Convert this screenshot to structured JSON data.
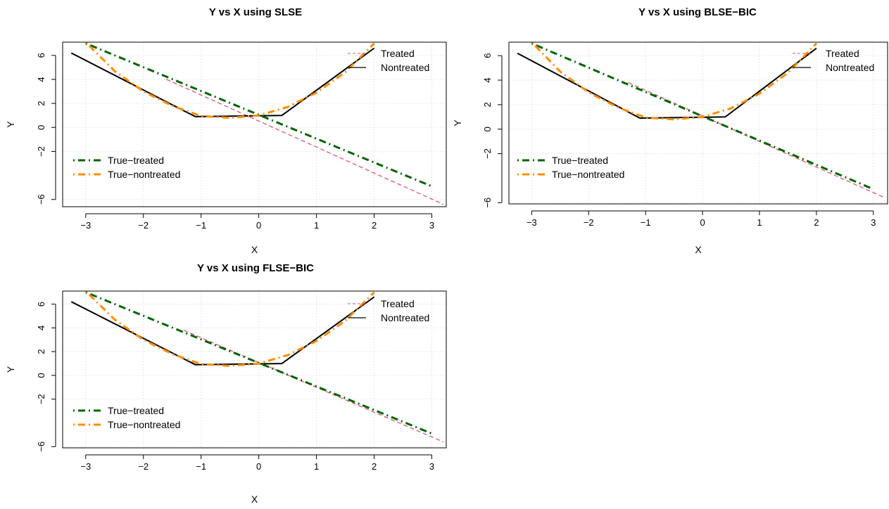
{
  "chart_data": [
    {
      "type": "line",
      "title": "Y vs X using SLSE",
      "xlabel": "X",
      "ylabel": "Y",
      "xlim": [
        -3.4,
        3.25
      ],
      "ylim": [
        -6.6,
        7.1
      ],
      "xticks": [
        -3,
        -2,
        -1,
        0,
        1,
        2,
        3
      ],
      "yticks": [
        -6,
        -2,
        0,
        2,
        4,
        6
      ],
      "grid": true,
      "legends": [
        {
          "position": "top-right",
          "entries": [
            "Treated",
            "Nontreated"
          ]
        },
        {
          "position": "bottom-left",
          "entries": [
            "True−treated",
            "True−nontreated"
          ]
        }
      ],
      "series": [
        {
          "name": "Treated",
          "color": "#DF536B",
          "dash": "dashed",
          "x": [
            -1.6,
            3.2
          ],
          "y": [
            4.0,
            -6.4
          ]
        },
        {
          "name": "Nontreated",
          "color": "#000000",
          "dash": "solid",
          "x": [
            -3.25,
            -1.1,
            0.4,
            2.0
          ],
          "y": [
            6.2,
            0.9,
            1.0,
            6.6
          ]
        },
        {
          "name": "True−treated",
          "color": "#006400",
          "dash": "dotdash",
          "x": [
            -3.0,
            3.0
          ],
          "y": [
            7.0,
            -4.9
          ]
        },
        {
          "name": "True−nontreated",
          "color": "#FF8C00",
          "dash": "dotdash",
          "x": [
            -3.0,
            -2.5,
            -2.0,
            -1.5,
            -1.0,
            -0.5,
            0.0,
            0.5,
            1.0,
            1.5,
            2.0
          ],
          "y": [
            7.1,
            4.7,
            3.0,
            1.8,
            0.95,
            0.8,
            1.0,
            1.7,
            2.9,
            4.6,
            7.0
          ]
        }
      ]
    },
    {
      "type": "line",
      "title": "Y vs X using BLSE−BIC",
      "xlabel": "X",
      "ylabel": "Y",
      "xlim": [
        -3.4,
        3.25
      ],
      "ylim": [
        -6.1,
        7.1
      ],
      "xticks": [
        -3,
        -2,
        -1,
        0,
        1,
        2,
        3
      ],
      "yticks": [
        -6,
        -2,
        0,
        2,
        4,
        6
      ],
      "grid": true,
      "legends": [
        {
          "position": "top-right",
          "entries": [
            "Treated",
            "Nontreated"
          ]
        },
        {
          "position": "bottom-left",
          "entries": [
            "True−treated",
            "True−nontreated"
          ]
        }
      ],
      "series": [
        {
          "name": "Treated",
          "color": "#DF536B",
          "dash": "dashed",
          "x": [
            -1.3,
            3.2
          ],
          "y": [
            3.8,
            -5.6
          ]
        },
        {
          "name": "Nontreated",
          "color": "#000000",
          "dash": "solid",
          "x": [
            -3.25,
            -1.1,
            0.4,
            2.0
          ],
          "y": [
            6.2,
            0.9,
            1.0,
            6.6
          ]
        },
        {
          "name": "True−treated",
          "color": "#006400",
          "dash": "dotdash",
          "x": [
            -3.0,
            3.0
          ],
          "y": [
            7.0,
            -4.9
          ]
        },
        {
          "name": "True−nontreated",
          "color": "#FF8C00",
          "dash": "dotdash",
          "x": [
            -3.0,
            -2.5,
            -2.0,
            -1.5,
            -1.0,
            -0.5,
            0.0,
            0.5,
            1.0,
            1.5,
            2.0
          ],
          "y": [
            7.1,
            4.7,
            3.0,
            1.8,
            0.95,
            0.8,
            1.0,
            1.7,
            2.9,
            4.6,
            7.0
          ]
        }
      ]
    },
    {
      "type": "line",
      "title": "Y vs X using FLSE−BIC",
      "xlabel": "X",
      "ylabel": "Y",
      "xlim": [
        -3.4,
        3.25
      ],
      "ylim": [
        -6.1,
        7.1
      ],
      "xticks": [
        -3,
        -2,
        -1,
        0,
        1,
        2,
        3
      ],
      "yticks": [
        -6,
        -2,
        0,
        2,
        4,
        6
      ],
      "grid": true,
      "legends": [
        {
          "position": "top-right",
          "entries": [
            "Treated",
            "Nontreated"
          ]
        },
        {
          "position": "bottom-left",
          "entries": [
            "True−treated",
            "True−nontreated"
          ]
        }
      ],
      "series": [
        {
          "name": "Treated",
          "color": "#DF536B",
          "dash": "dashed",
          "x": [
            -1.3,
            3.2
          ],
          "y": [
            3.8,
            -5.6
          ]
        },
        {
          "name": "Nontreated",
          "color": "#000000",
          "dash": "solid",
          "x": [
            -3.25,
            -1.1,
            0.4,
            2.0
          ],
          "y": [
            6.2,
            0.9,
            1.0,
            6.6
          ]
        },
        {
          "name": "True−treated",
          "color": "#006400",
          "dash": "dotdash",
          "x": [
            -3.0,
            3.0
          ],
          "y": [
            7.0,
            -4.9
          ]
        },
        {
          "name": "True−nontreated",
          "color": "#FF8C00",
          "dash": "dotdash",
          "x": [
            -3.0,
            -2.5,
            -2.0,
            -1.5,
            -1.0,
            -0.5,
            0.0,
            0.5,
            1.0,
            1.5,
            2.0
          ],
          "y": [
            7.1,
            4.7,
            3.0,
            1.8,
            0.95,
            0.8,
            1.0,
            1.7,
            2.9,
            4.6,
            7.0
          ]
        }
      ]
    }
  ]
}
